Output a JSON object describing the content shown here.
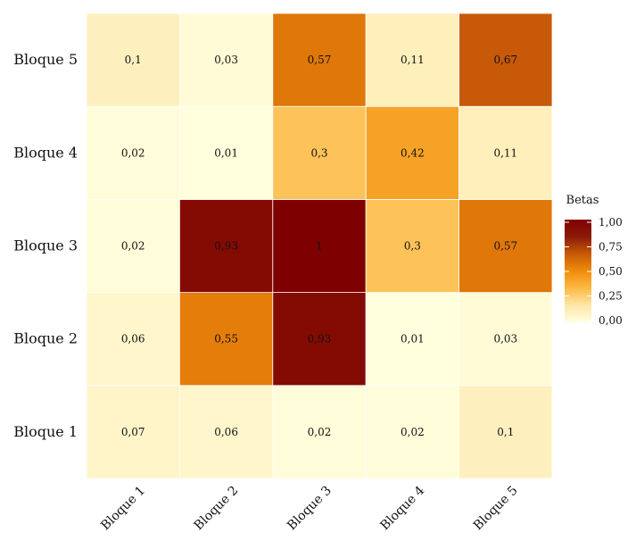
{
  "chart_data": {
    "type": "heatmap",
    "title": "",
    "xlabel": "",
    "ylabel": "",
    "x_categories": [
      "Bloque 1",
      "Bloque 2",
      "Bloque 3",
      "Bloque 4",
      "Bloque 5"
    ],
    "y_categories": [
      "Bloque 1",
      "Bloque 2",
      "Bloque 3",
      "Bloque 4",
      "Bloque 5"
    ],
    "values": [
      [
        0.07,
        0.06,
        0.02,
        0.02,
        0.1
      ],
      [
        0.06,
        0.55,
        0.93,
        0.01,
        0.03
      ],
      [
        0.02,
        0.93,
        1.0,
        0.3,
        0.57
      ],
      [
        0.02,
        0.01,
        0.3,
        0.42,
        0.11
      ],
      [
        0.1,
        0.03,
        0.57,
        0.11,
        0.67
      ]
    ],
    "labels": [
      [
        "0,07",
        "0,06",
        "0,02",
        "0,02",
        "0,1"
      ],
      [
        "0,06",
        "0,55",
        "0,93",
        "0,01",
        "0,03"
      ],
      [
        "0,02",
        "0,93",
        "1",
        "0,3",
        "0,57"
      ],
      [
        "0,02",
        "0,01",
        "0,3",
        "0,42",
        "0,11"
      ],
      [
        "0,1",
        "0,03",
        "0,57",
        "0,11",
        "0,67"
      ]
    ],
    "legend": {
      "title": "Betas",
      "range": [
        0,
        1
      ],
      "ticks": [
        1.0,
        0.75,
        0.5,
        0.25,
        0.0
      ],
      "tick_labels": [
        "1,00",
        "0,75",
        "0,50",
        "0,25",
        "0,00"
      ],
      "placement": "right"
    },
    "colorscale": [
      "#FFFFE0",
      "#FEE6A8",
      "#FDB944",
      "#F08C0A",
      "#C85A08",
      "#8B1A0A",
      "#7F0000"
    ]
  }
}
